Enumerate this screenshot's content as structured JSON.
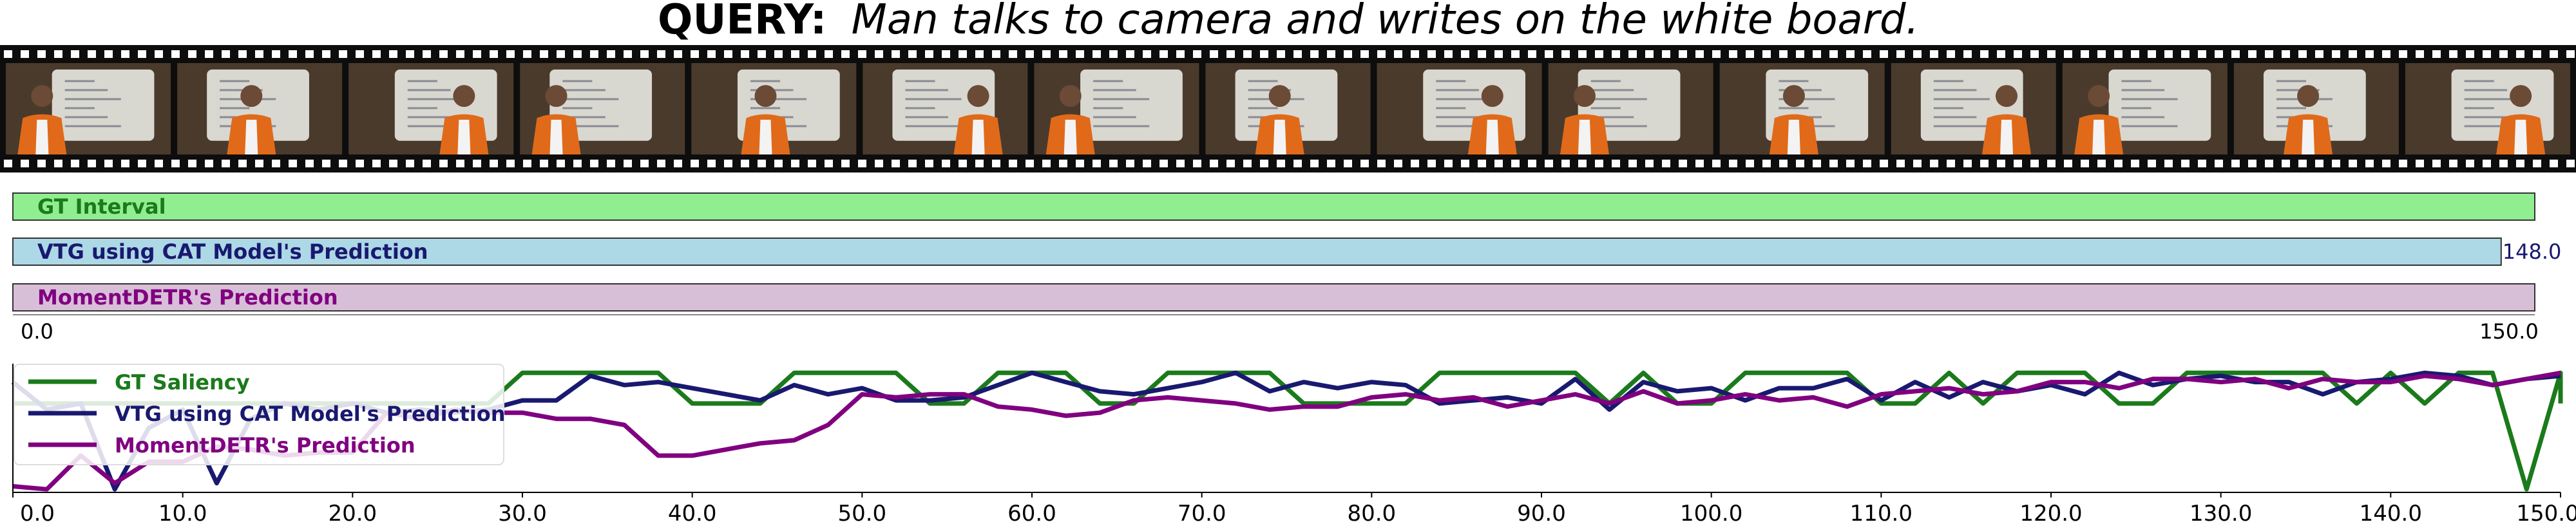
{
  "query": {
    "prefix": "QUERY:",
    "text": "Man talks to camera and writes on the white board."
  },
  "filmstrip": {
    "frame_count": 15
  },
  "interval_bars": [
    {
      "label": "GT Interval",
      "start": 0.0,
      "end": 150.0,
      "fill": "#90ee90",
      "text_color": "#1b7a1b",
      "end_label": ""
    },
    {
      "label": "VTG using CAT Model's Prediction",
      "start": 0.0,
      "end": 148.0,
      "fill": "#add8e6",
      "text_color": "#191970",
      "end_label": "148.0"
    },
    {
      "label": "MomentDETR's Prediction",
      "start": 0.0,
      "end": 150.0,
      "fill": "#d8bfd8",
      "text_color": "#800080",
      "end_label": ""
    }
  ],
  "interval_axis": {
    "start_label": "0.0",
    "end_label": "150.0"
  },
  "chart_data": {
    "type": "line",
    "title": "",
    "xlabel": "",
    "ylabel": "",
    "xlim": [
      0,
      150
    ],
    "ylim": [
      0,
      4.2
    ],
    "xticks": [
      0,
      10,
      20,
      30,
      40,
      50,
      60,
      70,
      80,
      90,
      100,
      110,
      120,
      130,
      140,
      150
    ],
    "xtick_labels": [
      "0.0",
      "10.0",
      "20.0",
      "30.0",
      "40.0",
      "50.0",
      "60.0",
      "70.0",
      "80.0",
      "90.0",
      "100.0",
      "110.0",
      "120.0",
      "130.0",
      "140.0",
      "150.0"
    ],
    "legend_position": "upper-left",
    "series": [
      {
        "name": "GT Saliency",
        "color": "#1b7a1b",
        "points": [
          [
            0,
            2.9
          ],
          [
            2,
            2.9
          ],
          [
            4,
            2.9
          ],
          [
            6,
            2.9
          ],
          [
            8,
            2.9
          ],
          [
            10,
            2.9
          ],
          [
            12,
            2.9
          ],
          [
            14,
            2.9
          ],
          [
            16,
            2.9
          ],
          [
            18,
            2.9
          ],
          [
            20,
            2.9
          ],
          [
            22,
            2.9
          ],
          [
            24,
            2.9
          ],
          [
            26,
            2.9
          ],
          [
            28,
            2.9
          ],
          [
            30,
            3.9
          ],
          [
            32,
            3.9
          ],
          [
            34,
            3.9
          ],
          [
            36,
            3.9
          ],
          [
            38,
            3.9
          ],
          [
            40,
            2.9
          ],
          [
            42,
            2.9
          ],
          [
            44,
            2.9
          ],
          [
            46,
            3.9
          ],
          [
            48,
            3.9
          ],
          [
            50,
            3.9
          ],
          [
            52,
            3.9
          ],
          [
            54,
            2.9
          ],
          [
            56,
            2.9
          ],
          [
            58,
            3.9
          ],
          [
            60,
            3.9
          ],
          [
            62,
            3.9
          ],
          [
            64,
            2.9
          ],
          [
            66,
            2.9
          ],
          [
            68,
            3.9
          ],
          [
            70,
            3.9
          ],
          [
            72,
            3.9
          ],
          [
            74,
            3.9
          ],
          [
            76,
            2.9
          ],
          [
            78,
            2.9
          ],
          [
            80,
            2.9
          ],
          [
            82,
            2.9
          ],
          [
            84,
            3.9
          ],
          [
            86,
            3.9
          ],
          [
            88,
            3.9
          ],
          [
            90,
            3.9
          ],
          [
            92,
            3.9
          ],
          [
            94,
            2.9
          ],
          [
            96,
            3.9
          ],
          [
            98,
            2.9
          ],
          [
            100,
            2.9
          ],
          [
            102,
            3.9
          ],
          [
            104,
            3.9
          ],
          [
            106,
            3.9
          ],
          [
            108,
            3.9
          ],
          [
            110,
            2.9
          ],
          [
            112,
            2.9
          ],
          [
            114,
            3.9
          ],
          [
            116,
            2.9
          ],
          [
            118,
            3.9
          ],
          [
            120,
            3.9
          ],
          [
            122,
            3.9
          ],
          [
            124,
            2.9
          ],
          [
            126,
            2.9
          ],
          [
            128,
            3.9
          ],
          [
            130,
            3.9
          ],
          [
            132,
            3.9
          ],
          [
            134,
            3.9
          ],
          [
            136,
            3.9
          ],
          [
            138,
            2.9
          ],
          [
            140,
            3.9
          ],
          [
            142,
            2.9
          ],
          [
            144,
            3.9
          ],
          [
            146,
            3.9
          ],
          [
            148,
            0.1
          ],
          [
            150,
            3.9
          ],
          [
            150,
            2.9
          ]
        ]
      },
      {
        "name": "VTG using CAT Model's Prediction",
        "color": "#191970",
        "points": [
          [
            0,
            3.6
          ],
          [
            2,
            2.7
          ],
          [
            4,
            2.9
          ],
          [
            6,
            0.1
          ],
          [
            8,
            2.1
          ],
          [
            10,
            2.7
          ],
          [
            12,
            0.3
          ],
          [
            14,
            2.4
          ],
          [
            16,
            2.9
          ],
          [
            18,
            2.7
          ],
          [
            20,
            2.9
          ],
          [
            22,
            2.6
          ],
          [
            24,
            2.7
          ],
          [
            26,
            2.6
          ],
          [
            28,
            2.7
          ],
          [
            30,
            3.0
          ],
          [
            32,
            3.0
          ],
          [
            34,
            3.8
          ],
          [
            36,
            3.5
          ],
          [
            38,
            3.6
          ],
          [
            40,
            3.4
          ],
          [
            42,
            3.2
          ],
          [
            44,
            3.0
          ],
          [
            46,
            3.5
          ],
          [
            48,
            3.2
          ],
          [
            50,
            3.4
          ],
          [
            52,
            3.0
          ],
          [
            54,
            3.0
          ],
          [
            56,
            3.1
          ],
          [
            58,
            3.5
          ],
          [
            60,
            3.9
          ],
          [
            62,
            3.6
          ],
          [
            64,
            3.3
          ],
          [
            66,
            3.2
          ],
          [
            68,
            3.4
          ],
          [
            70,
            3.6
          ],
          [
            72,
            3.9
          ],
          [
            74,
            3.3
          ],
          [
            76,
            3.6
          ],
          [
            78,
            3.4
          ],
          [
            80,
            3.6
          ],
          [
            82,
            3.5
          ],
          [
            84,
            2.9
          ],
          [
            86,
            3.0
          ],
          [
            88,
            3.1
          ],
          [
            90,
            2.9
          ],
          [
            92,
            3.7
          ],
          [
            94,
            2.7
          ],
          [
            96,
            3.6
          ],
          [
            98,
            3.3
          ],
          [
            100,
            3.4
          ],
          [
            102,
            3.0
          ],
          [
            104,
            3.4
          ],
          [
            106,
            3.4
          ],
          [
            108,
            3.7
          ],
          [
            110,
            3.0
          ],
          [
            112,
            3.6
          ],
          [
            114,
            3.1
          ],
          [
            116,
            3.6
          ],
          [
            118,
            3.3
          ],
          [
            120,
            3.5
          ],
          [
            122,
            3.2
          ],
          [
            124,
            3.9
          ],
          [
            126,
            3.5
          ],
          [
            128,
            3.7
          ],
          [
            130,
            3.8
          ],
          [
            132,
            3.6
          ],
          [
            134,
            3.6
          ],
          [
            136,
            3.2
          ],
          [
            138,
            3.6
          ],
          [
            140,
            3.7
          ],
          [
            142,
            3.9
          ],
          [
            144,
            3.8
          ],
          [
            146,
            3.5
          ],
          [
            148,
            3.7
          ],
          [
            150,
            3.8
          ]
        ]
      },
      {
        "name": "MomentDETR's Prediction",
        "color": "#800080",
        "points": [
          [
            0,
            0.2
          ],
          [
            2,
            0.1
          ],
          [
            4,
            1.2
          ],
          [
            6,
            0.3
          ],
          [
            8,
            1.0
          ],
          [
            10,
            1.0
          ],
          [
            12,
            1.5
          ],
          [
            14,
            1.4
          ],
          [
            16,
            1.2
          ],
          [
            18,
            1.3
          ],
          [
            20,
            1.3
          ],
          [
            22,
            2.6
          ],
          [
            24,
            2.4
          ],
          [
            26,
            2.7
          ],
          [
            28,
            2.6
          ],
          [
            30,
            2.6
          ],
          [
            32,
            2.4
          ],
          [
            34,
            2.4
          ],
          [
            36,
            2.2
          ],
          [
            38,
            1.2
          ],
          [
            40,
            1.2
          ],
          [
            42,
            1.4
          ],
          [
            44,
            1.6
          ],
          [
            46,
            1.7
          ],
          [
            48,
            2.2
          ],
          [
            50,
            3.2
          ],
          [
            52,
            3.1
          ],
          [
            54,
            3.2
          ],
          [
            56,
            3.2
          ],
          [
            58,
            2.8
          ],
          [
            60,
            2.7
          ],
          [
            62,
            2.5
          ],
          [
            64,
            2.6
          ],
          [
            66,
            3.0
          ],
          [
            68,
            3.1
          ],
          [
            70,
            3.0
          ],
          [
            72,
            2.9
          ],
          [
            74,
            2.7
          ],
          [
            76,
            2.8
          ],
          [
            78,
            2.8
          ],
          [
            80,
            3.1
          ],
          [
            82,
            3.2
          ],
          [
            84,
            3.0
          ],
          [
            86,
            3.1
          ],
          [
            88,
            2.8
          ],
          [
            90,
            3.0
          ],
          [
            92,
            3.2
          ],
          [
            94,
            2.9
          ],
          [
            96,
            3.3
          ],
          [
            98,
            2.9
          ],
          [
            100,
            3.0
          ],
          [
            102,
            3.2
          ],
          [
            104,
            3.0
          ],
          [
            106,
            3.1
          ],
          [
            108,
            2.8
          ],
          [
            110,
            3.2
          ],
          [
            112,
            3.3
          ],
          [
            114,
            3.4
          ],
          [
            116,
            3.2
          ],
          [
            118,
            3.3
          ],
          [
            120,
            3.6
          ],
          [
            122,
            3.6
          ],
          [
            124,
            3.4
          ],
          [
            126,
            3.7
          ],
          [
            128,
            3.7
          ],
          [
            130,
            3.6
          ],
          [
            132,
            3.7
          ],
          [
            134,
            3.4
          ],
          [
            136,
            3.7
          ],
          [
            138,
            3.6
          ],
          [
            140,
            3.6
          ],
          [
            142,
            3.8
          ],
          [
            144,
            3.7
          ],
          [
            146,
            3.5
          ],
          [
            148,
            3.7
          ],
          [
            150,
            3.9
          ]
        ]
      }
    ]
  }
}
